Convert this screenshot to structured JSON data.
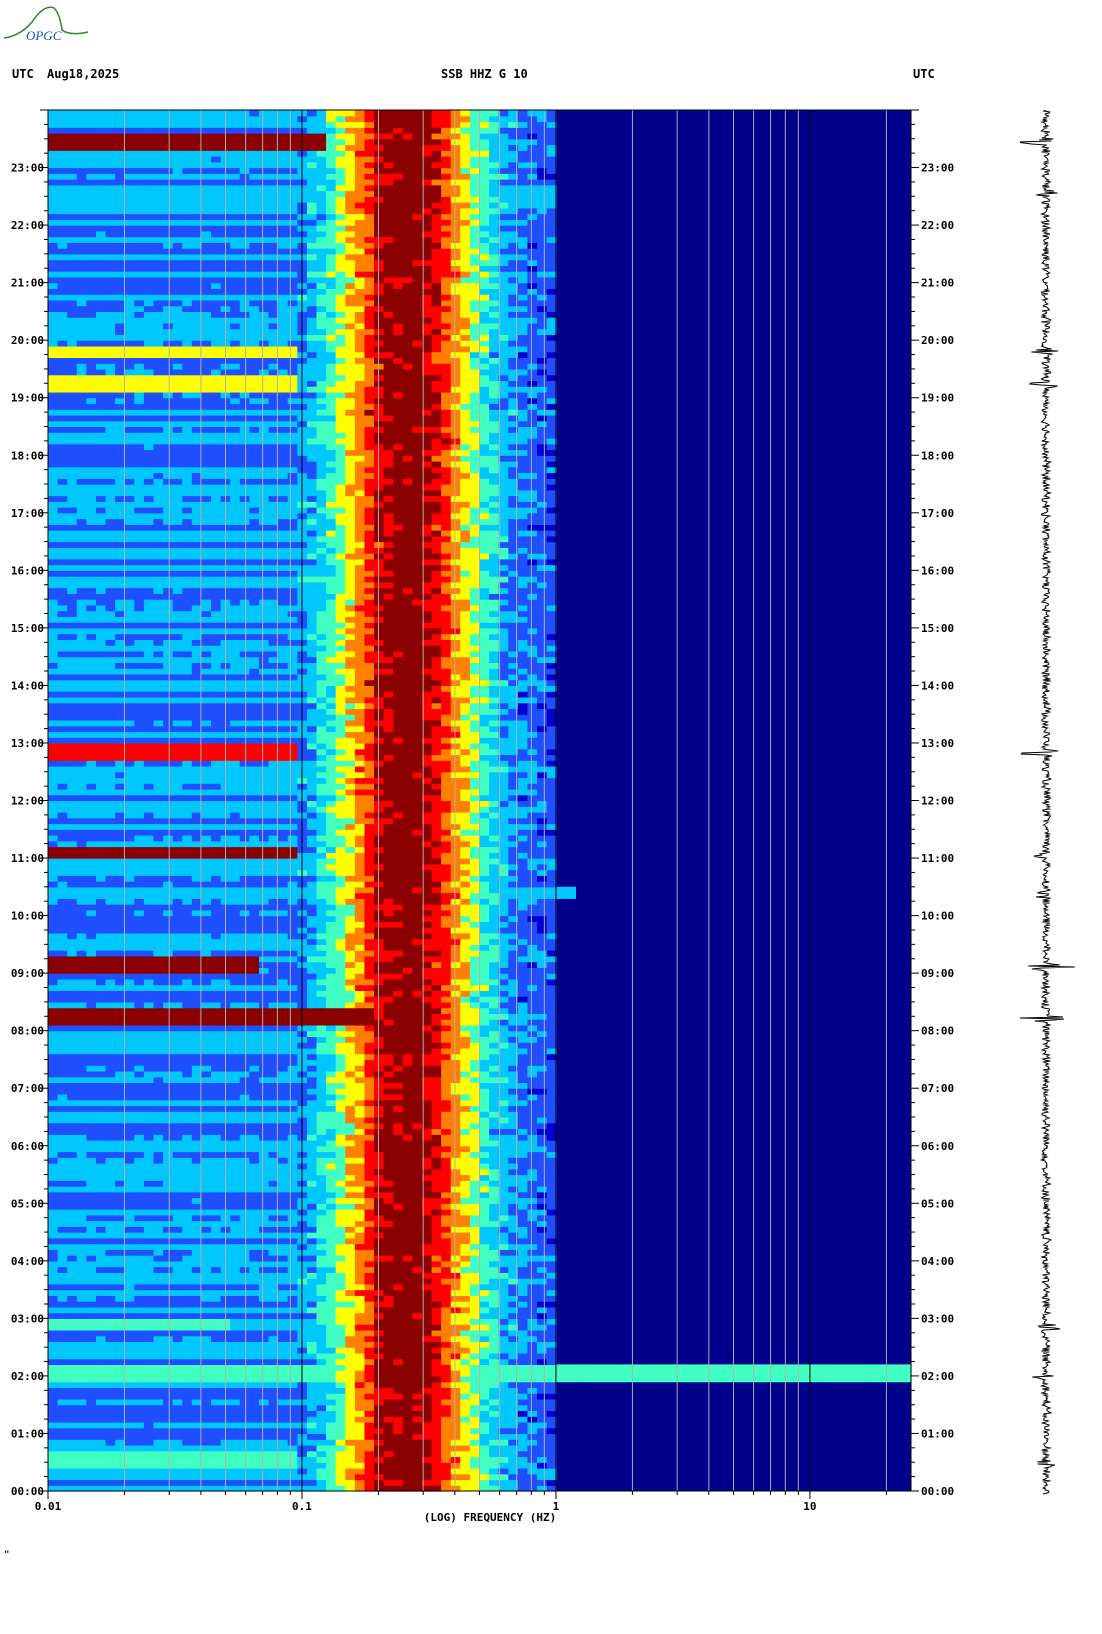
{
  "header": {
    "utc_left": "UTC",
    "date": "Aug18,2025",
    "station": "SSB HHZ G 10",
    "utc_right": "UTC"
  },
  "logo": {
    "text": "OPGC"
  },
  "footnote": "\"",
  "chart_data": {
    "type": "heatmap",
    "xlabel": "(LOG) FREQUENCY (HZ)",
    "x_scale": "log",
    "xlim": [
      0.01,
      25
    ],
    "x_ticks": [
      {
        "value": 0.01,
        "label": "0.01"
      },
      {
        "value": 0.1,
        "label": "0.1"
      },
      {
        "value": 1,
        "label": "1"
      },
      {
        "value": 10,
        "label": "10"
      }
    ],
    "y_hours": [
      "00:00",
      "01:00",
      "02:00",
      "03:00",
      "04:00",
      "05:00",
      "06:00",
      "07:00",
      "08:00",
      "09:00",
      "10:00",
      "11:00",
      "12:00",
      "13:00",
      "14:00",
      "15:00",
      "16:00",
      "17:00",
      "18:00",
      "19:00",
      "20:00",
      "21:00",
      "22:00",
      "23:00"
    ],
    "ylim_hours": [
      0,
      24
    ],
    "dominant_band_hz": [
      0.2,
      0.3
    ],
    "peak_frequency_hz": 0.26,
    "colormap": [
      "#00008b",
      "#0000cd",
      "#1f4fff",
      "#00c8ff",
      "#40ffc0",
      "#ffff00",
      "#ff8000",
      "#ff0000",
      "#8b0000"
    ],
    "events": [
      {
        "hour": 0.55,
        "fmax_hz": 0.1,
        "level": 0.5
      },
      {
        "hour": 2.05,
        "fmax_hz": 25,
        "level": 0.45
      },
      {
        "hour": 2.9,
        "fmax_hz": 0.05,
        "level": 0.55
      },
      {
        "hour": 8.25,
        "fmax_hz": 0.2,
        "level": 1.0
      },
      {
        "hour": 9.15,
        "fmax_hz": 0.07,
        "level": 0.95
      },
      {
        "hour": 10.4,
        "fmax_hz": 1.2,
        "level": 0.4
      },
      {
        "hour": 11.1,
        "fmax_hz": 0.1,
        "level": 0.95
      },
      {
        "hour": 12.85,
        "fmax_hz": 0.1,
        "level": 0.9
      },
      {
        "hour": 19.25,
        "fmax_hz": 0.1,
        "level": 0.6
      },
      {
        "hour": 19.8,
        "fmax_hz": 0.1,
        "level": 0.6
      },
      {
        "hour": 22.55,
        "fmax_hz": 1.0,
        "level": 0.4
      },
      {
        "hour": 23.45,
        "fmax_hz": 0.12,
        "level": 0.95
      }
    ]
  }
}
